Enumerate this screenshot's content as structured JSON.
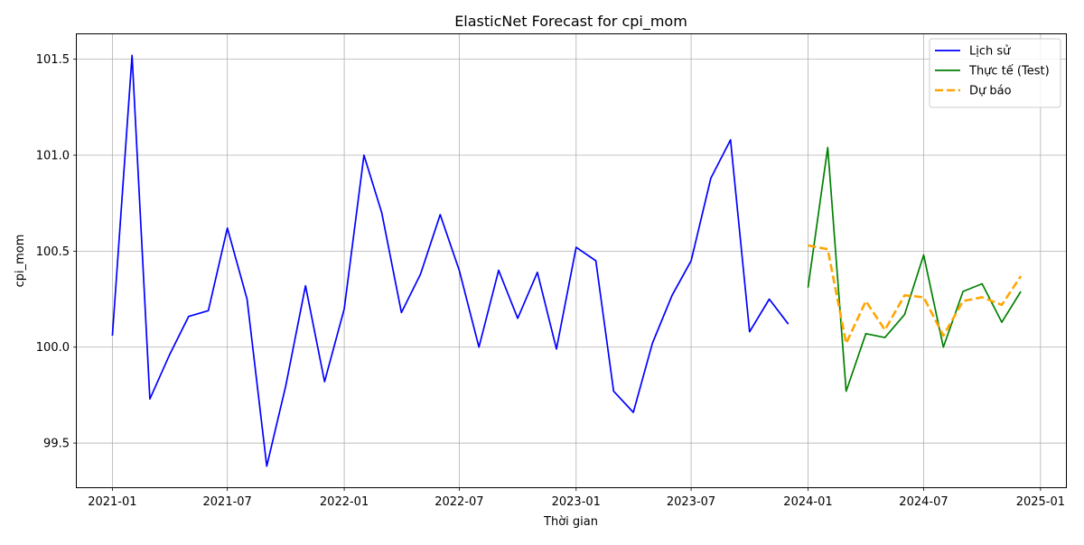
{
  "chart_data": {
    "type": "line",
    "title": "ElasticNet Forecast for cpi_mom",
    "xlabel": "Thời gian",
    "ylabel": "cpi_mom",
    "xlim": [
      "2020-11-06",
      "2025-02-10"
    ],
    "ylim": [
      99.27,
      101.63
    ],
    "grid": true,
    "legend_position": "top-right",
    "x_ticks": [
      {
        "date": "2021-01-01",
        "label": "2021-01"
      },
      {
        "date": "2021-07-01",
        "label": "2021-07"
      },
      {
        "date": "2022-01-01",
        "label": "2022-01"
      },
      {
        "date": "2022-07-01",
        "label": "2022-07"
      },
      {
        "date": "2023-01-01",
        "label": "2023-01"
      },
      {
        "date": "2023-07-01",
        "label": "2023-07"
      },
      {
        "date": "2024-01-01",
        "label": "2024-01"
      },
      {
        "date": "2024-07-01",
        "label": "2024-07"
      },
      {
        "date": "2025-01-01",
        "label": "2025-01"
      }
    ],
    "y_ticks": [
      {
        "value": 99.5,
        "label": "99.5"
      },
      {
        "value": 100.0,
        "label": "100.0"
      },
      {
        "value": 100.5,
        "label": "100.5"
      },
      {
        "value": 101.0,
        "label": "101.0"
      },
      {
        "value": 101.5,
        "label": "101.5"
      }
    ],
    "series": [
      {
        "name": "Lịch sử",
        "color": "#0000ff",
        "dash": "solid",
        "x": [
          "2021-01-01",
          "2021-02-01",
          "2021-03-01",
          "2021-04-01",
          "2021-05-01",
          "2021-06-01",
          "2021-07-01",
          "2021-08-01",
          "2021-09-01",
          "2021-10-01",
          "2021-11-01",
          "2021-12-01",
          "2022-01-01",
          "2022-02-01",
          "2022-03-01",
          "2022-04-01",
          "2022-05-01",
          "2022-06-01",
          "2022-07-01",
          "2022-08-01",
          "2022-09-01",
          "2022-10-01",
          "2022-11-01",
          "2022-12-01",
          "2023-01-01",
          "2023-02-01",
          "2023-03-01",
          "2023-04-01",
          "2023-05-01",
          "2023-06-01",
          "2023-07-01",
          "2023-08-01",
          "2023-09-01",
          "2023-10-01",
          "2023-11-01",
          "2023-12-01"
        ],
        "values": [
          100.06,
          101.52,
          99.73,
          99.96,
          100.16,
          100.19,
          100.62,
          100.25,
          99.38,
          99.8,
          100.32,
          99.82,
          100.2,
          101.0,
          100.7,
          100.18,
          100.38,
          100.69,
          100.4,
          100.0,
          100.4,
          100.15,
          100.39,
          99.99,
          100.52,
          100.45,
          99.77,
          99.66,
          100.02,
          100.27,
          100.45,
          100.88,
          101.08,
          100.08,
          100.25,
          100.12
        ]
      },
      {
        "name": "Thực tế (Test)",
        "color": "#008000",
        "dash": "solid",
        "x": [
          "2024-01-01",
          "2024-02-01",
          "2024-03-01",
          "2024-04-01",
          "2024-05-01",
          "2024-06-01",
          "2024-07-01",
          "2024-08-01",
          "2024-09-01",
          "2024-10-01",
          "2024-11-01",
          "2024-12-01"
        ],
        "values": [
          100.31,
          101.04,
          99.77,
          100.07,
          100.05,
          100.17,
          100.48,
          100.0,
          100.29,
          100.33,
          100.13,
          100.29
        ]
      },
      {
        "name": "Dự báo",
        "color": "#ffa500",
        "dash": "dashed",
        "x": [
          "2024-01-01",
          "2024-02-01",
          "2024-03-01",
          "2024-04-01",
          "2024-05-01",
          "2024-06-01",
          "2024-07-01",
          "2024-08-01",
          "2024-09-01",
          "2024-10-01",
          "2024-11-01",
          "2024-12-01"
        ],
        "values": [
          100.53,
          100.51,
          100.02,
          100.24,
          100.09,
          100.27,
          100.26,
          100.06,
          100.24,
          100.26,
          100.22,
          100.37
        ]
      }
    ]
  }
}
